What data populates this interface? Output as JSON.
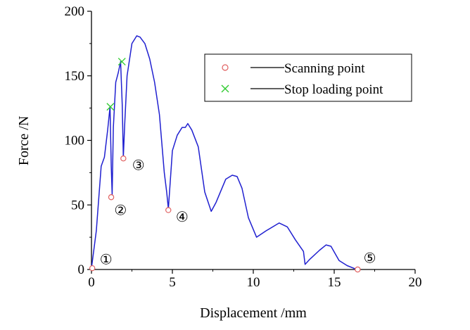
{
  "chart_data": {
    "type": "line",
    "title": "",
    "xlabel": "Displacement /mm",
    "ylabel": "Force /N",
    "xlim": [
      0,
      20
    ],
    "ylim": [
      0,
      200
    ],
    "xticks": [
      0,
      5,
      10,
      15,
      20
    ],
    "yticks": [
      0,
      50,
      100,
      150,
      200
    ],
    "grid": false,
    "legend_position": "top-right",
    "colors": {
      "curve": "#2020d0",
      "scanning_point": "#e06060",
      "stop_loading_point": "#33cc33"
    },
    "series": [
      {
        "x": [
          0,
          0.3,
          0.6,
          0.8,
          1.0,
          1.15,
          1.22,
          1.28,
          1.35,
          1.5,
          1.65,
          1.8,
          1.9,
          1.97,
          2.05,
          2.2,
          2.5,
          2.8,
          3.0,
          3.3,
          3.6,
          3.9,
          4.2,
          4.5,
          4.65,
          4.75,
          5.0,
          5.3,
          5.6,
          5.8,
          5.95,
          6.2,
          6.6,
          7.0,
          7.4,
          7.7,
          8.3,
          8.7,
          9.0,
          9.3,
          9.7,
          10.2,
          10.8,
          11.6,
          12.1,
          12.6,
          13.1,
          13.2,
          13.5,
          14.1,
          14.5,
          14.8,
          15.3,
          15.8,
          16.4
        ],
        "y": [
          1,
          30,
          80,
          87,
          108,
          126,
          80,
          58,
          110,
          145,
          152,
          161,
          128,
          87,
          112,
          150,
          175,
          181,
          180,
          175,
          163,
          145,
          120,
          75,
          60,
          47,
          92,
          104,
          110,
          110,
          113,
          108,
          95,
          60,
          45,
          52,
          70,
          73,
          72,
          63,
          40,
          25,
          30,
          36,
          33,
          23,
          14,
          4,
          8,
          15,
          19,
          18,
          7,
          3,
          0
        ]
      }
    ],
    "legend": [
      {
        "label": "Scanning point",
        "marker": "circle"
      },
      {
        "label": "Stop loading point",
        "marker": "x"
      }
    ],
    "scanning_points": [
      {
        "x": 0.05,
        "y": 1
      },
      {
        "x": 1.22,
        "y": 56
      },
      {
        "x": 1.97,
        "y": 86
      },
      {
        "x": 4.75,
        "y": 46
      },
      {
        "x": 16.45,
        "y": 0
      }
    ],
    "stop_loading_points": [
      {
        "x": 1.17,
        "y": 126
      },
      {
        "x": 1.88,
        "y": 161
      }
    ],
    "annotations": [
      {
        "text": "①",
        "x": 0.9,
        "y": 8
      },
      {
        "text": "②",
        "x": 1.8,
        "y": 46
      },
      {
        "text": "③",
        "x": 2.9,
        "y": 81
      },
      {
        "text": "④",
        "x": 5.6,
        "y": 41
      },
      {
        "text": "⑤",
        "x": 17.2,
        "y": 9
      }
    ]
  }
}
